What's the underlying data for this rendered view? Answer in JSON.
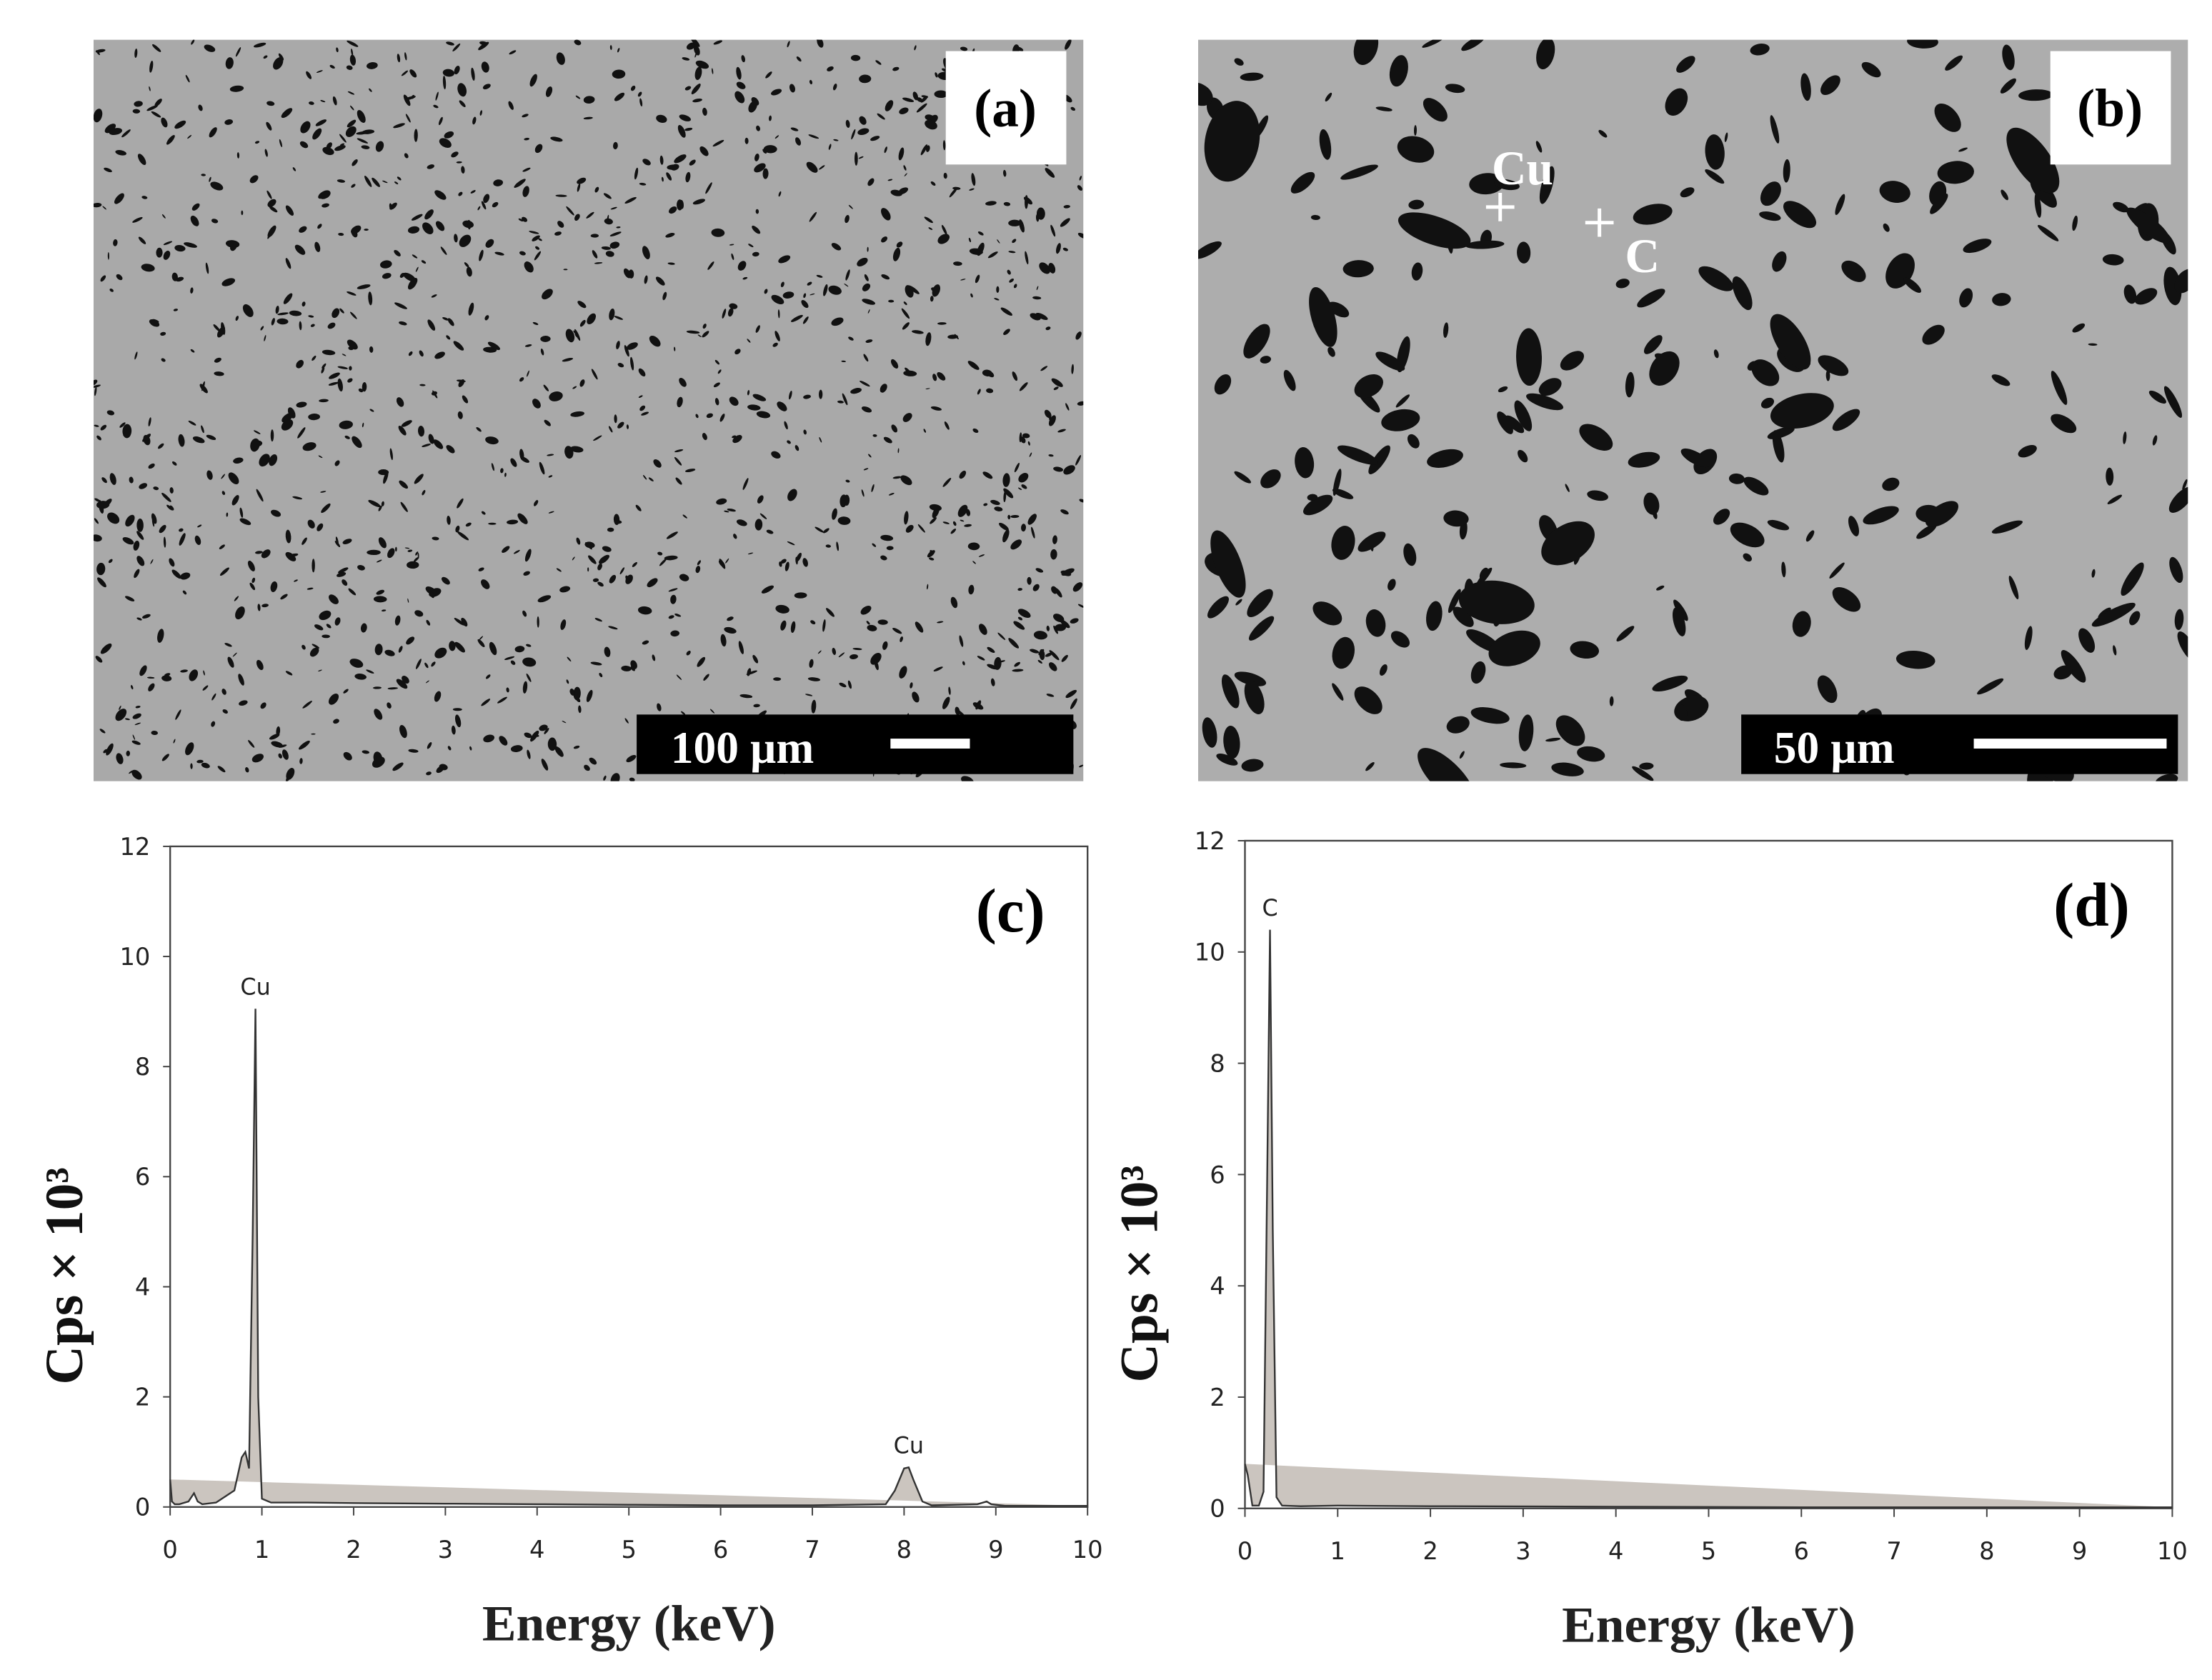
{
  "panels": [
    {
      "label": "(a)",
      "scale_bar": "100 µm"
    },
    {
      "label": "(b)",
      "scale_bar": "50 µm",
      "points": [
        "Cu",
        "C"
      ]
    }
  ],
  "chart_data": [
    {
      "type": "area",
      "label": "(c)",
      "xlabel": "Energy (keV)",
      "ylabel": "Cps × 10³",
      "x": [
        0,
        0.02,
        0.05,
        0.1,
        0.2,
        0.26,
        0.3,
        0.35,
        0.5,
        0.7,
        0.78,
        0.82,
        0.86,
        0.9,
        0.93,
        0.96,
        1.0,
        1.1,
        1.5,
        2,
        3,
        4,
        5,
        6,
        7,
        7.8,
        7.9,
        8.0,
        8.05,
        8.1,
        8.2,
        8.3,
        8.8,
        8.9,
        8.95,
        9.1,
        10
      ],
      "series": [
        {
          "color": "#cbc5bf",
          "values": [
            0.5,
            0.1,
            0.05,
            0.05,
            0.1,
            0.25,
            0.1,
            0.05,
            0.08,
            0.3,
            0.9,
            1.0,
            0.7,
            5,
            9.05,
            2,
            0.15,
            0.08,
            0.08,
            0.07,
            0.06,
            0.05,
            0.04,
            0.03,
            0.03,
            0.05,
            0.3,
            0.7,
            0.72,
            0.5,
            0.1,
            0.03,
            0.05,
            0.1,
            0.05,
            0.02,
            0.02
          ]
        }
      ],
      "xlim": [
        0,
        10
      ],
      "ylim": [
        0,
        12
      ],
      "xticks": [
        0,
        1,
        2,
        3,
        4,
        5,
        6,
        7,
        8,
        9,
        10
      ],
      "yticks": [
        0,
        2,
        4,
        6,
        8,
        10,
        12
      ],
      "annotations": [
        {
          "text": "Cu",
          "x": 0.93,
          "y": 9.05
        },
        {
          "text": "Cu",
          "x": 8.05,
          "y": 0.72
        }
      ]
    },
    {
      "type": "area",
      "label": "(d)",
      "xlabel": "Energy (keV)",
      "ylabel": "Cps × 10³",
      "x": [
        0,
        0.03,
        0.08,
        0.15,
        0.2,
        0.24,
        0.27,
        0.3,
        0.34,
        0.4,
        0.6,
        1,
        2,
        4,
        6,
        8,
        10
      ],
      "series": [
        {
          "color": "#cbc5bf",
          "values": [
            0.8,
            0.6,
            0.05,
            0.05,
            0.3,
            6,
            10.4,
            5,
            0.2,
            0.05,
            0.04,
            0.05,
            0.04,
            0.03,
            0.02,
            0.02,
            0.02
          ]
        }
      ],
      "xlim": [
        0,
        10
      ],
      "ylim": [
        0,
        12
      ],
      "xticks": [
        0,
        1,
        2,
        3,
        4,
        5,
        6,
        7,
        8,
        9,
        10
      ],
      "yticks": [
        0,
        2,
        4,
        6,
        8,
        10,
        12
      ],
      "annotations": [
        {
          "text": "C",
          "x": 0.27,
          "y": 10.4
        }
      ]
    }
  ]
}
